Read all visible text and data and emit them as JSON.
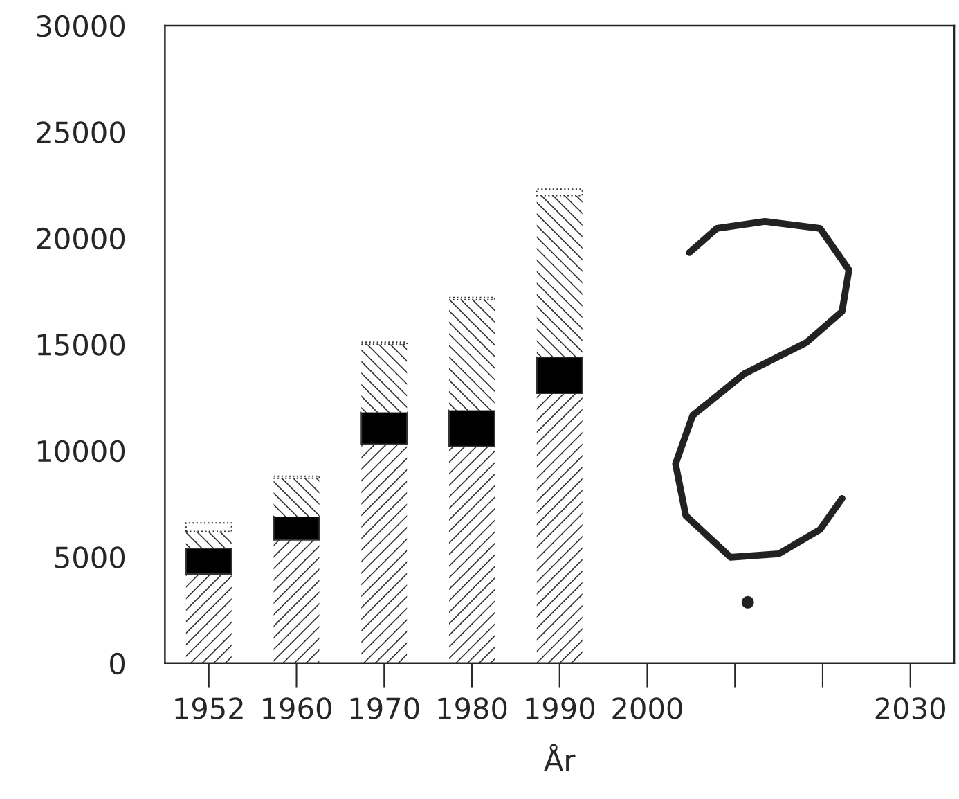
{
  "chart_data": {
    "type": "bar",
    "stacked": true,
    "xlabel": "År",
    "categories": [
      "1952",
      "1960",
      "1970",
      "1980",
      "1990",
      "2000",
      null,
      null,
      "2030"
    ],
    "series": [
      {
        "color": "#ffffff",
        "values": [
          4200,
          5800,
          10300,
          10200,
          12700,
          null,
          null,
          null,
          null
        ]
      },
      {
        "color": "#000000",
        "values": [
          1200,
          1100,
          1500,
          1700,
          1700,
          null,
          null,
          null,
          null
        ]
      },
      {
        "color": "#ffffff",
        "values": [
          800,
          1800,
          3200,
          5200,
          7600,
          null,
          null,
          null,
          null
        ]
      },
      {
        "color": "#ffffff",
        "values": [
          400,
          100,
          100,
          100,
          300,
          null,
          null,
          null,
          null
        ]
      }
    ],
    "ylim": [
      0,
      30000
    ],
    "yticks": [
      0,
      5000,
      10000,
      15000,
      20000,
      25000,
      30000
    ],
    "grid": false,
    "legend": false
  }
}
